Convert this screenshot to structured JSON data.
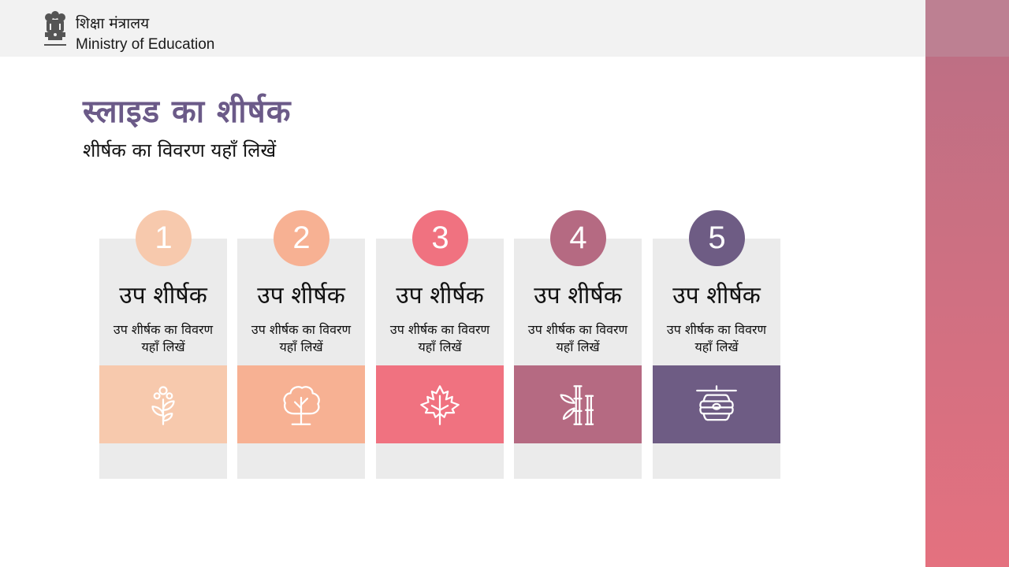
{
  "header": {
    "ministry_hindi": "शिक्षा मंत्रालय",
    "ministry_english": "Ministry of Education",
    "emblem_icon": "national-emblem-icon"
  },
  "slide": {
    "title": "स्लाइड का शीर्षक",
    "subtitle": "शीर्षक का विवरण यहाँ लिखें"
  },
  "cards": [
    {
      "number": "1",
      "heading": "उप शीर्षक",
      "description": "उप शीर्षक का विवरण यहाँ लिखें",
      "icon": "flower-sprout-icon",
      "color": "#f7c9ad"
    },
    {
      "number": "2",
      "heading": "उप शीर्षक",
      "description": "उप शीर्षक का विवरण यहाँ लिखें",
      "icon": "tree-icon",
      "color": "#f7b193"
    },
    {
      "number": "3",
      "heading": "उप शीर्षक",
      "description": "उप शीर्षक का विवरण यहाँ लिखें",
      "icon": "maple-leaf-icon",
      "color": "#f07280"
    },
    {
      "number": "4",
      "heading": "उप शीर्षक",
      "description": "उप शीर्षक का विवरण यहाँ लिखें",
      "icon": "bamboo-icon",
      "color": "#b56a82"
    },
    {
      "number": "5",
      "heading": "उप शीर्षक",
      "description": "उप शीर्षक का विवरण यहाँ लिखें",
      "icon": "beehive-icon",
      "color": "#6e5c84"
    }
  ],
  "colors": {
    "title": "#6b5a88",
    "card_background": "#ebebeb",
    "header_background": "#f2f2f2",
    "right_band_top": "#bd8092",
    "right_band_gradient_start": "#be6f84",
    "right_band_gradient_end": "#e4717f"
  }
}
